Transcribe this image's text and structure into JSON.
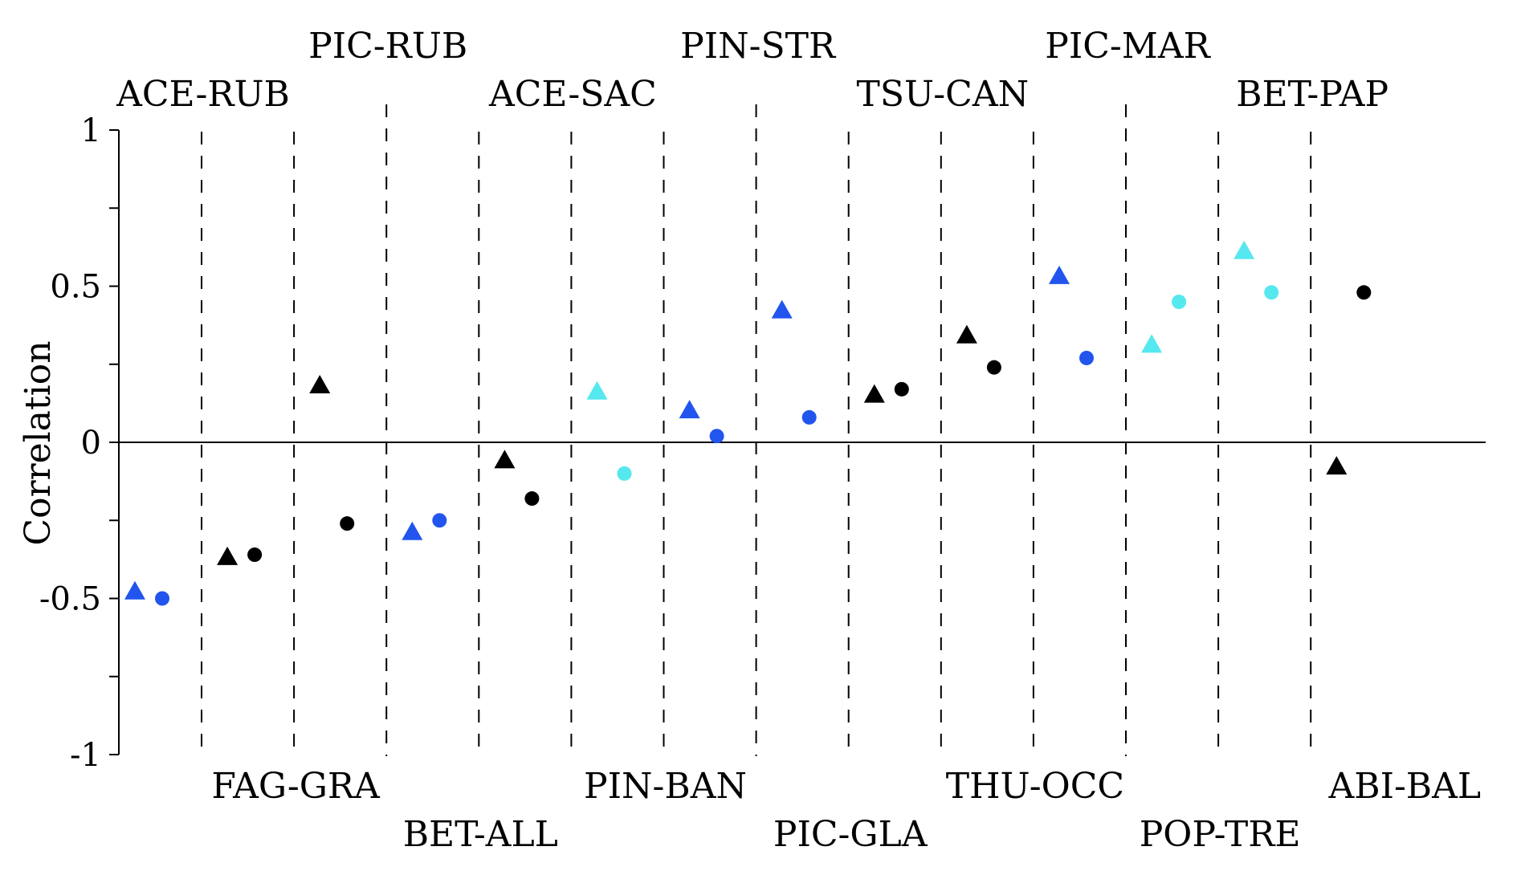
{
  "chart_data": {
    "type": "scatter",
    "ylabel": "Correlation",
    "ylim": [
      -1,
      1
    ],
    "yticks": [
      -1,
      -0.5,
      0,
      0.5,
      1
    ],
    "ytick_labels": [
      "-1",
      "-0.5",
      "0",
      "0.5",
      "1"
    ],
    "grid": false,
    "zero_line": true,
    "category_separators": "dashed vertical lines",
    "categories": [
      "ACE-RUB",
      "FAG-GRA",
      "PIC-RUB",
      "BET-ALL",
      "ACE-SAC",
      "PIN-BAN",
      "PIN-STR",
      "PIC-GLA",
      "TSU-CAN",
      "THU-OCC",
      "PIC-MAR",
      "POP-TRE",
      "BET-PAP",
      "ABI-BAL"
    ],
    "label_positions": [
      "top",
      "bottom",
      "top",
      "bottom",
      "top",
      "bottom",
      "top",
      "bottom",
      "top",
      "bottom",
      "top",
      "bottom",
      "top",
      "bottom"
    ],
    "label_tiers": [
      "low",
      "high",
      "high",
      "low",
      "low",
      "high",
      "high",
      "low",
      "low",
      "high",
      "high",
      "low",
      "low",
      "high"
    ],
    "colors": {
      "blue": "#2255ee",
      "black": "#000000",
      "cyan": "#55e8ee"
    },
    "series": [
      {
        "marker": "triangle",
        "values": [
          -0.48,
          -0.37,
          0.18,
          -0.29,
          -0.06,
          0.16,
          0.1,
          0.42,
          0.15,
          0.34,
          0.53,
          0.31,
          0.61,
          -0.08
        ],
        "colors": [
          "blue",
          "black",
          "black",
          "blue",
          "black",
          "cyan",
          "blue",
          "blue",
          "black",
          "black",
          "blue",
          "cyan",
          "cyan",
          "black"
        ]
      },
      {
        "marker": "circle",
        "values": [
          -0.5,
          -0.36,
          -0.26,
          -0.25,
          -0.18,
          -0.1,
          0.02,
          0.08,
          0.17,
          0.24,
          0.27,
          0.45,
          0.48,
          0.48
        ],
        "colors": [
          "blue",
          "black",
          "black",
          "blue",
          "black",
          "cyan",
          "blue",
          "blue",
          "black",
          "black",
          "blue",
          "cyan",
          "cyan",
          "black"
        ]
      }
    ]
  }
}
